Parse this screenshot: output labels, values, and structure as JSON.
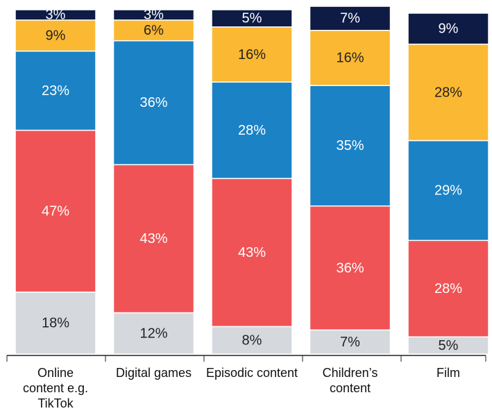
{
  "chart_data": {
    "type": "stacked_bar",
    "categories": [
      "Online content e.g. TikTok",
      "Digital games",
      "Episodic content",
      "Children’s content",
      "Film"
    ],
    "series": [
      {
        "color": "#d5d9de",
        "values": [
          18,
          12,
          8,
          7,
          5
        ],
        "value_labels": [
          "18%",
          "12%",
          "8%",
          "7%",
          "5%"
        ]
      },
      {
        "color": "#f05355",
        "values": [
          47,
          43,
          43,
          36,
          28
        ],
        "value_labels": [
          "47%",
          "43%",
          "43%",
          "36%",
          "28%"
        ]
      },
      {
        "color": "#1b82c5",
        "values": [
          23,
          36,
          28,
          35,
          29
        ],
        "value_labels": [
          "23%",
          "36%",
          "28%",
          "35%",
          "29%"
        ]
      },
      {
        "color": "#fbb832",
        "values": [
          9,
          6,
          16,
          16,
          28
        ],
        "value_labels": [
          "9%",
          "6%",
          "16%",
          "16%",
          "28%"
        ]
      },
      {
        "color": "#0d1b45",
        "values": [
          3,
          3,
          5,
          7,
          9
        ],
        "value_labels": [
          "3%",
          "3%",
          "5%",
          "7%",
          "9%"
        ]
      }
    ]
  }
}
